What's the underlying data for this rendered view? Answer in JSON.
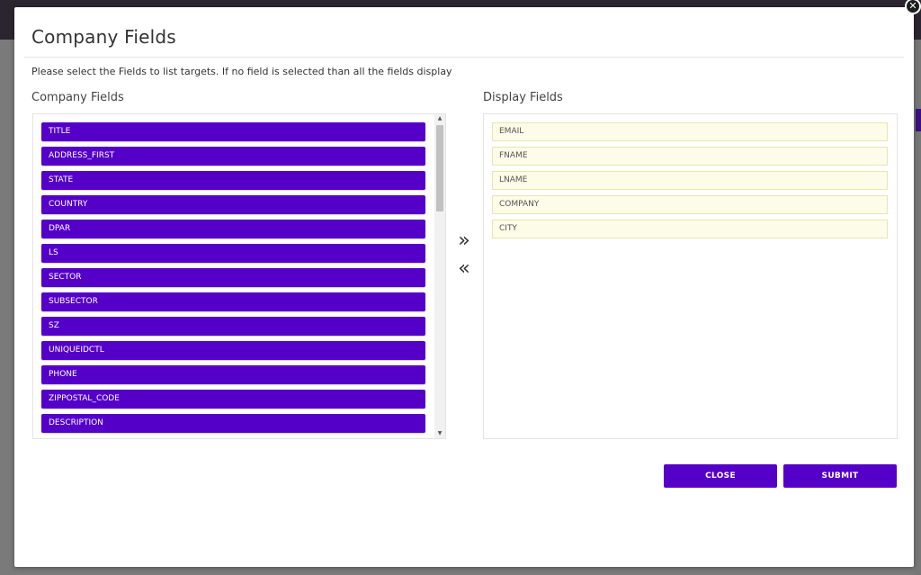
{
  "modal": {
    "title": "Company Fields",
    "close_icon": "close-icon",
    "close_glyph": "✕",
    "instruction": "Please select the Fields to list targets. If no field is selected than all the fields display"
  },
  "company_fields": {
    "heading": "Company Fields",
    "items": [
      "TITLE",
      "ADDRESS_FIRST",
      "STATE",
      "COUNTRY",
      "DPAR",
      "LS",
      "SECTOR",
      "SUBSECTOR",
      "SZ",
      "UNIQUEIDCTL",
      "PHONE",
      "ZIPPOSTAL_CODE",
      "DESCRIPTION"
    ]
  },
  "display_fields": {
    "heading": "Display Fields",
    "items": [
      "EMAIL",
      "FNAME",
      "LNAME",
      "COMPANY",
      "CITY"
    ]
  },
  "transfer": {
    "add_icon": "double-chevron-right-icon",
    "add_glyph": "»",
    "remove_icon": "double-chevron-left-icon",
    "remove_glyph": "«"
  },
  "buttons": {
    "close_label": "CLOSE",
    "submit_label": "SUBMIT"
  },
  "colors": {
    "accent": "#5500c8",
    "chip_selected_bg": "#fcfce8",
    "chip_selected_border": "#e7e7b3"
  }
}
